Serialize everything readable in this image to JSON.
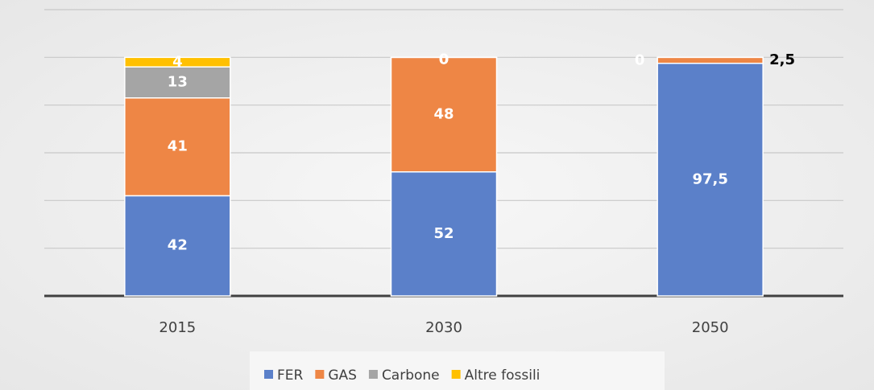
{
  "chart_data": {
    "type": "stacked-bar",
    "categories": [
      "2015",
      "2030",
      "2050"
    ],
    "series": [
      {
        "name": "FER",
        "color": "#5b80c9",
        "values": [
          42,
          52,
          97.5
        ],
        "value_labels": [
          "42",
          "52",
          "97,5"
        ]
      },
      {
        "name": "GAS",
        "color": "#ee8645",
        "values": [
          41,
          48,
          2.5
        ],
        "value_labels": [
          "41",
          "48",
          "2,5"
        ]
      },
      {
        "name": "Carbone",
        "color": "#a5a5a5",
        "values": [
          13,
          0,
          0
        ]
      },
      {
        "name": "Altre fossili",
        "color": "#ffc000",
        "values": [
          4,
          0,
          null
        ]
      }
    ],
    "ylim": [
      0,
      120
    ],
    "yticks": [
      0,
      20,
      40,
      60,
      80,
      100,
      120
    ],
    "grid": true,
    "legend": "bottom"
  }
}
